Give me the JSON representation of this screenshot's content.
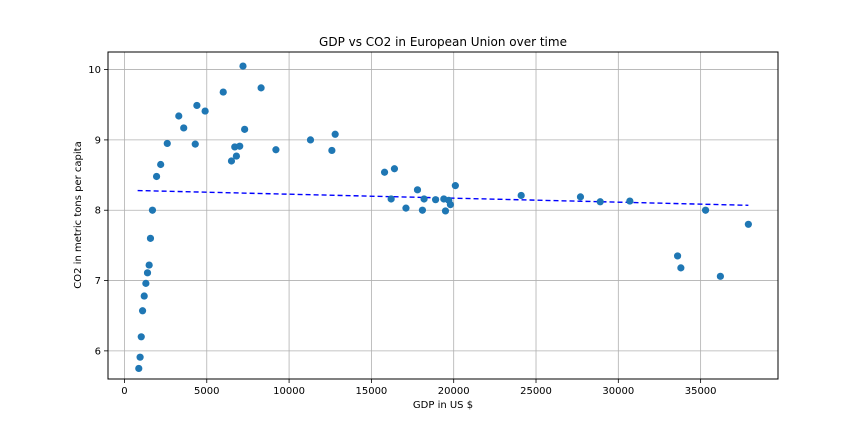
{
  "chart_data": {
    "type": "scatter",
    "title": "GDP vs CO2 in European Union over time",
    "xlabel": "GDP in US $",
    "ylabel": "CO2 in metric tons per capita",
    "xlim": [
      -1000,
      39700
    ],
    "ylim": [
      5.6,
      10.25
    ],
    "xticks": [
      0,
      5000,
      10000,
      15000,
      20000,
      25000,
      30000,
      35000
    ],
    "yticks": [
      6,
      7,
      8,
      9,
      10
    ],
    "grid": true,
    "colors": {
      "points": "#1f77b4",
      "trend": "#0000ff",
      "grid": "#b0b0b0"
    },
    "series": [
      {
        "points": [
          [
            870,
            5.75
          ],
          [
            950,
            5.91
          ],
          [
            1020,
            6.2
          ],
          [
            1100,
            6.57
          ],
          [
            1200,
            6.78
          ],
          [
            1300,
            6.96
          ],
          [
            1400,
            7.11
          ],
          [
            1500,
            7.22
          ],
          [
            1580,
            7.6
          ],
          [
            1700,
            8.0
          ],
          [
            1950,
            8.48
          ],
          [
            2200,
            8.65
          ],
          [
            2600,
            8.95
          ],
          [
            3300,
            9.34
          ],
          [
            3600,
            9.17
          ],
          [
            4300,
            8.94
          ],
          [
            4400,
            9.49
          ],
          [
            4900,
            9.41
          ],
          [
            6000,
            9.68
          ],
          [
            6500,
            8.7
          ],
          [
            6700,
            8.9
          ],
          [
            6800,
            8.77
          ],
          [
            7000,
            8.91
          ],
          [
            7200,
            10.05
          ],
          [
            7300,
            9.15
          ],
          [
            8300,
            9.74
          ],
          [
            9200,
            8.86
          ],
          [
            11300,
            9.0
          ],
          [
            12600,
            8.85
          ],
          [
            12800,
            9.08
          ],
          [
            15800,
            8.54
          ],
          [
            16200,
            8.16
          ],
          [
            16400,
            8.59
          ],
          [
            17100,
            8.03
          ],
          [
            17800,
            8.29
          ],
          [
            18100,
            8.0
          ],
          [
            18200,
            8.16
          ],
          [
            18900,
            8.15
          ],
          [
            19400,
            8.16
          ],
          [
            19500,
            7.99
          ],
          [
            19700,
            8.14
          ],
          [
            19800,
            8.08
          ],
          [
            20100,
            8.35
          ],
          [
            24100,
            8.21
          ],
          [
            27700,
            8.19
          ],
          [
            28900,
            8.12
          ],
          [
            30700,
            8.13
          ],
          [
            33600,
            7.35
          ],
          [
            33800,
            7.18
          ],
          [
            35300,
            8.0
          ],
          [
            36200,
            7.06
          ],
          [
            37900,
            7.8
          ]
        ]
      }
    ],
    "trend_line": {
      "x": [
        800,
        37900
      ],
      "y": [
        8.28,
        8.07
      ]
    }
  }
}
